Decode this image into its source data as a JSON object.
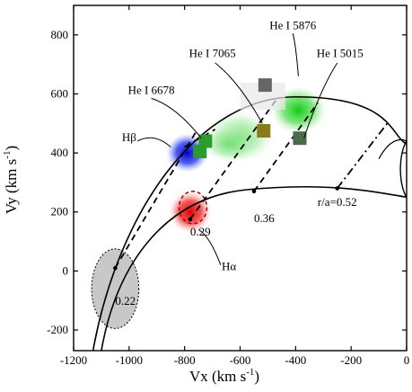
{
  "chart_data": {
    "type": "scatter",
    "title": "",
    "xlabel": "Vx (km s",
    "xlabel_sup": "-1",
    "xlabel_end": ")",
    "ylabel": "Vy (km s",
    "ylabel_sup": "-1",
    "ylabel_end": ")",
    "xlim": [
      -1200,
      0
    ],
    "ylim": [
      -270,
      900
    ],
    "x_ticks": [
      -1200,
      -1000,
      -800,
      -600,
      -400,
      -200,
      0
    ],
    "y_ticks": [
      -200,
      0,
      200,
      400,
      600,
      800
    ],
    "grid": false,
    "emission_regions": [
      {
        "name": "Hβ",
        "color": "#1f2fe8",
        "cx": -790,
        "cy": 400,
        "rx": 75,
        "ry": 65
      },
      {
        "name": "Hα",
        "color": "#e81f1f",
        "cx": -780,
        "cy": 200,
        "rx": 75,
        "ry": 70
      },
      {
        "name": "He I 6678",
        "color": "#3ad63a",
        "cx": -600,
        "cy": 455,
        "rx": 120,
        "ry": 85
      },
      {
        "name": "He I 5876",
        "color": "#22c822",
        "cx": -390,
        "cy": 545,
        "rx": 100,
        "ry": 80
      }
    ],
    "square_markers": [
      {
        "label": "He I 5876",
        "x": -510,
        "y": 630,
        "fill": "#666666"
      },
      {
        "label": "He I 7065",
        "x": -515,
        "y": 475,
        "fill": "#8a7a1a"
      },
      {
        "label": "He I 6678",
        "x": -725,
        "y": 440,
        "fill": "#2d9a2d"
      },
      {
        "label": "He I 6678",
        "x": -745,
        "y": 405,
        "fill": "#2d9a2d"
      },
      {
        "label": "He I 5015",
        "x": -385,
        "y": 450,
        "fill": "#4a6a4a"
      }
    ],
    "ellipse_white_disk": {
      "cx": -1050,
      "cy": -60,
      "rx": 85,
      "ry": 135,
      "fill": "#c8c8c8"
    },
    "trajectory_labels": [
      {
        "text": "0.22",
        "x": -1050,
        "y": -60
      },
      {
        "text": "0.29",
        "x": -780,
        "y": 175
      },
      {
        "text": "0.36",
        "x": -550,
        "y": 220
      },
      {
        "text": "r/a=0.52",
        "x": -250,
        "y": 275
      }
    ],
    "annotations": [
      {
        "text": "He I 5876",
        "x": -410,
        "y": 820
      },
      {
        "text": "He I 7065",
        "x": -700,
        "y": 725
      },
      {
        "text": "He I 5015",
        "x": -240,
        "y": 725
      },
      {
        "text": "He I 6678",
        "x": -920,
        "y": 600
      },
      {
        "text": "Hβ",
        "x": -1000,
        "y": 440
      },
      {
        "text": "Hα",
        "x": -640,
        "y": 2
      }
    ]
  }
}
